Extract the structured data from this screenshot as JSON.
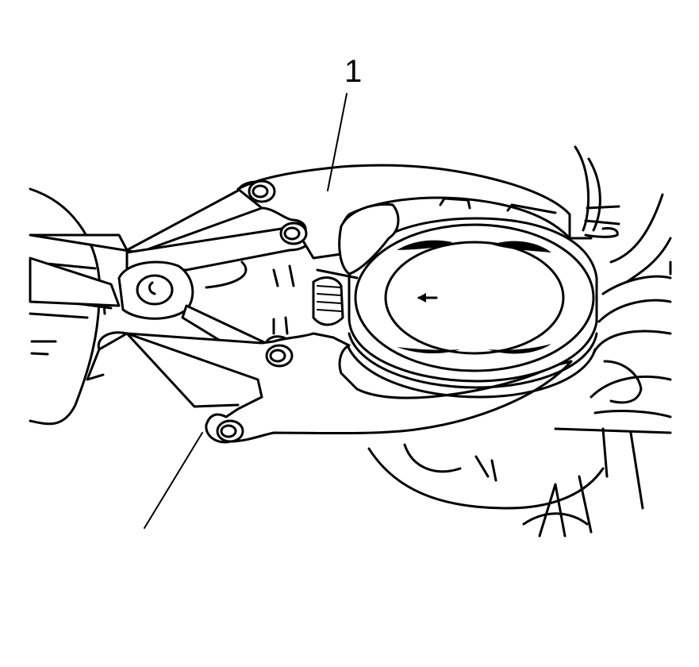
{
  "figure": {
    "callouts": [
      {
        "id": "1",
        "label": "1"
      }
    ],
    "direction_arrow_glyph": "←",
    "colors": {
      "line": "#000000",
      "background": "#ffffff"
    }
  }
}
